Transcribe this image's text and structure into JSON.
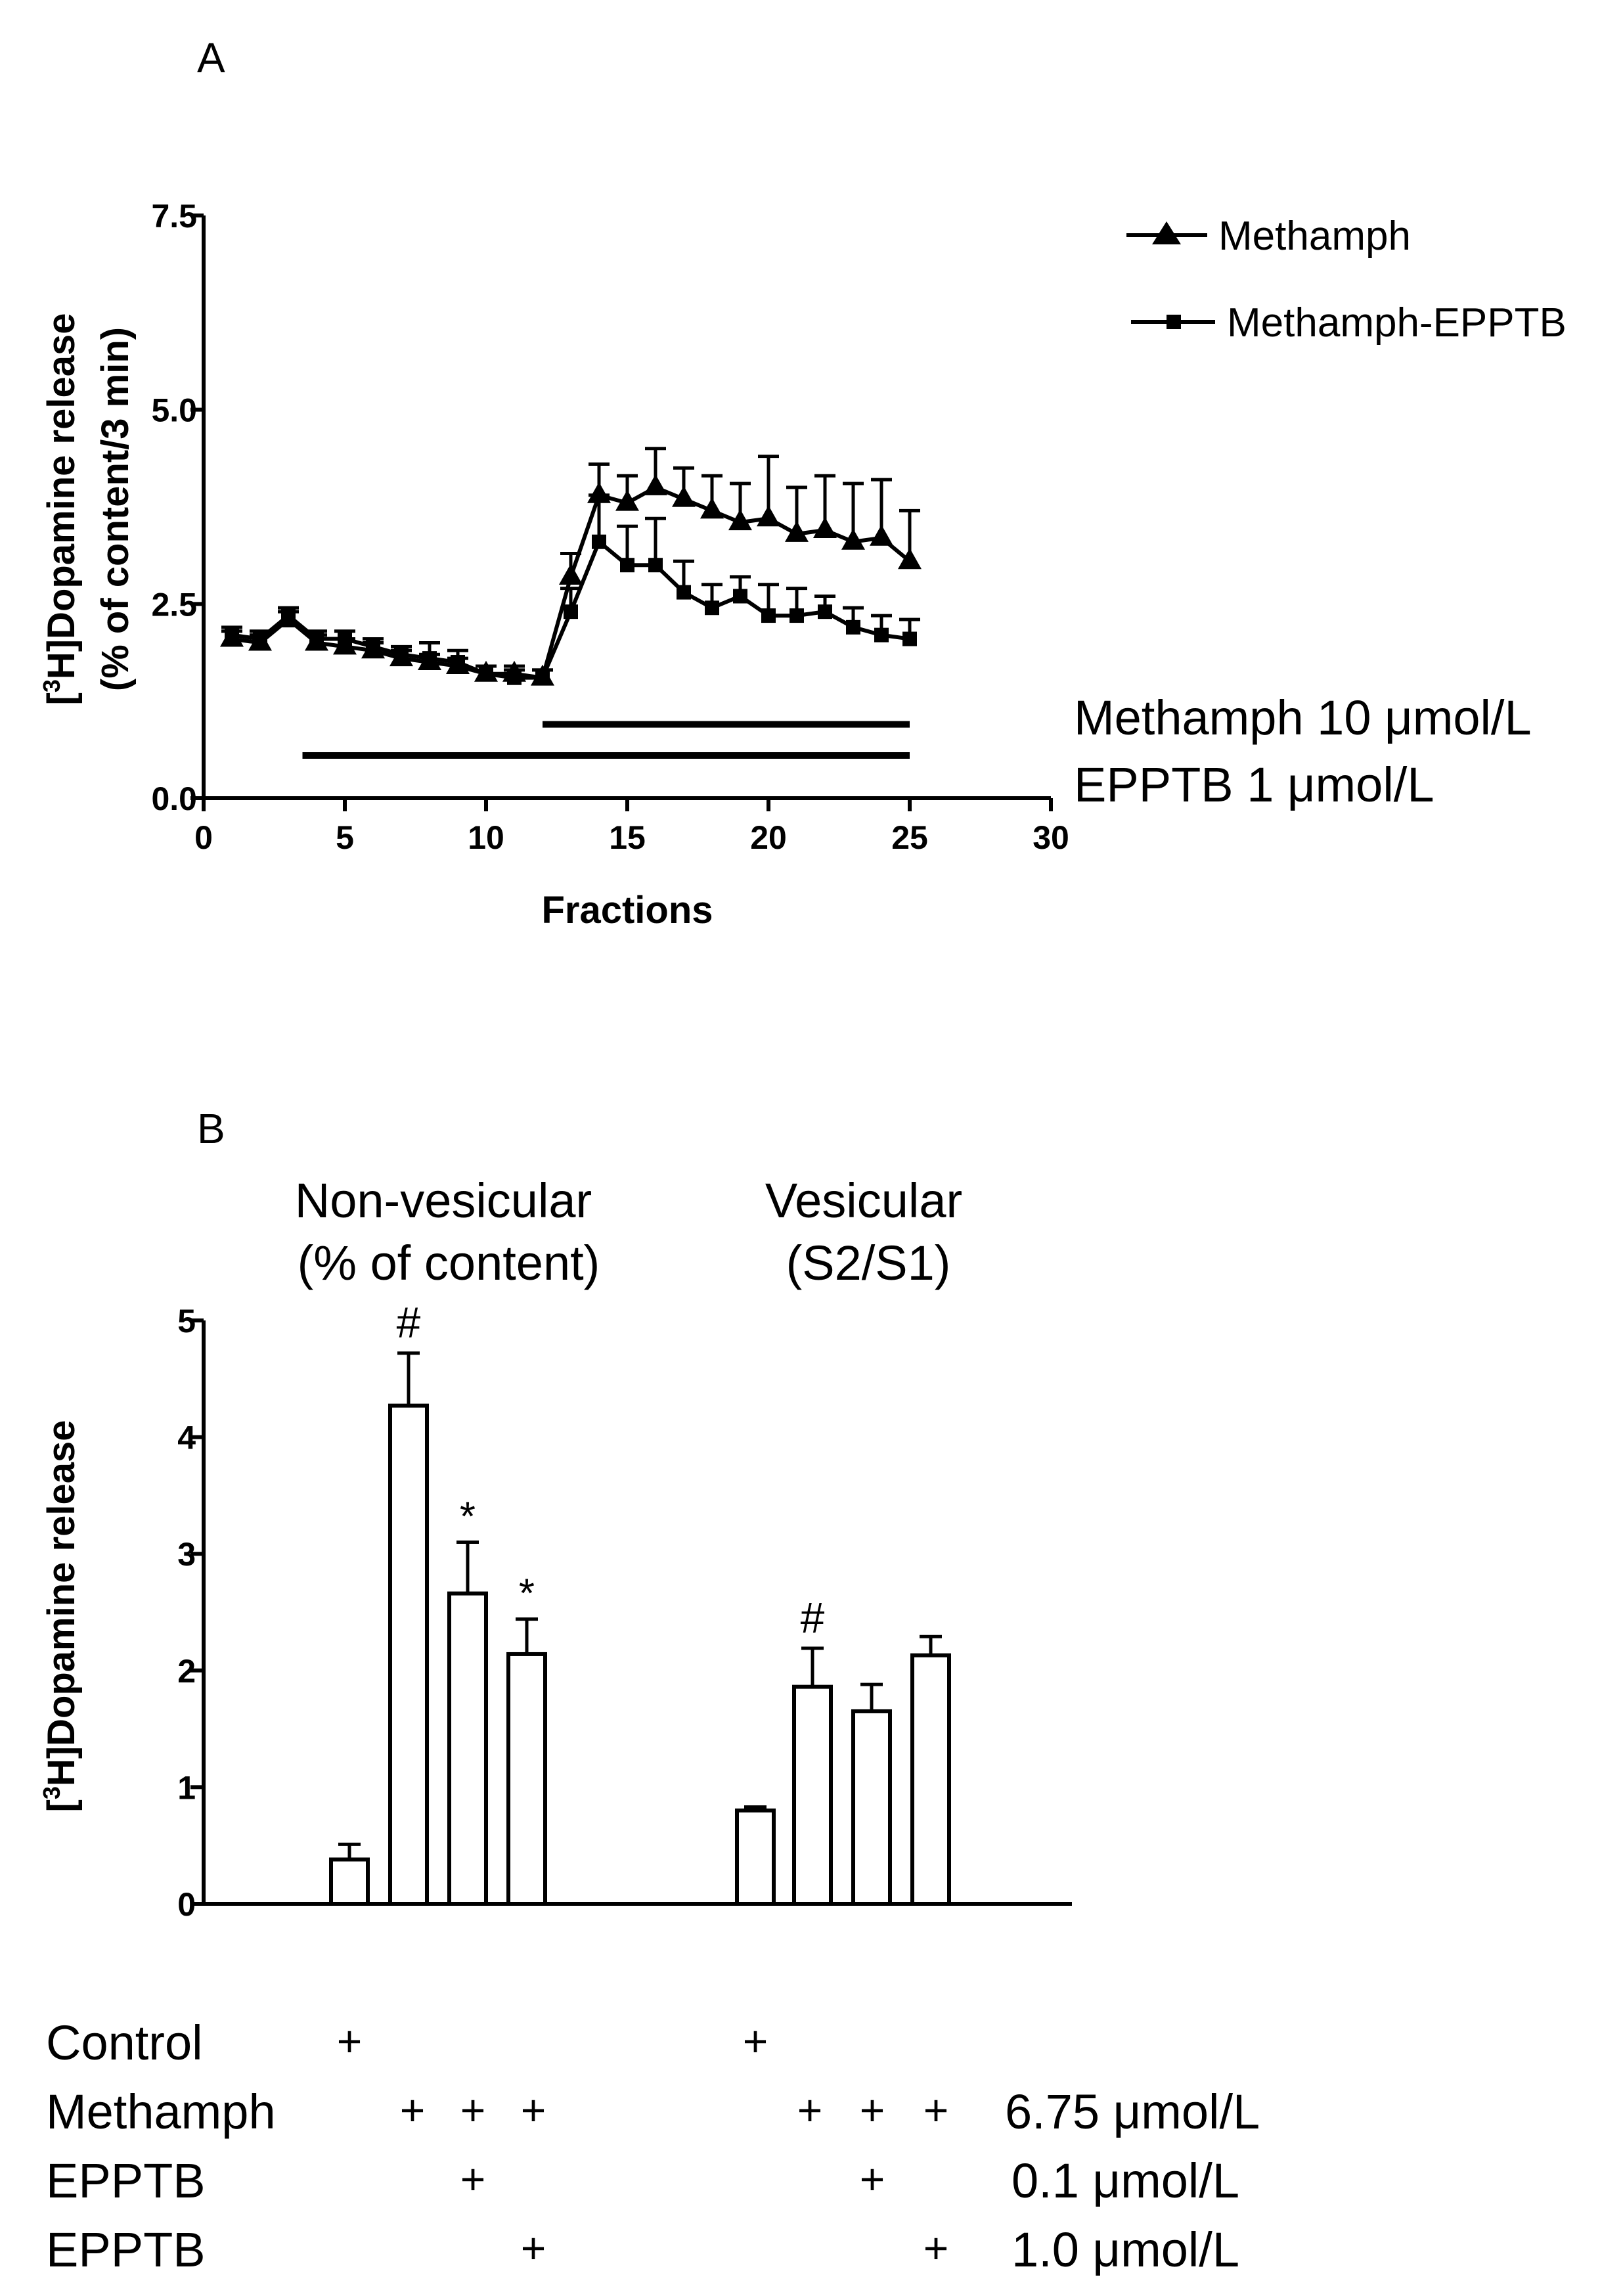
{
  "chart_data": [
    {
      "panel": "A",
      "type": "line",
      "xlabel": "Fractions",
      "ylabel_line1": "[3H]Dopamine release",
      "ylabel_line2": "(% of content/3 min)",
      "xlim": [
        0,
        30
      ],
      "ylim": [
        0,
        7.5
      ],
      "xticks": [
        0,
        5,
        10,
        15,
        20,
        25,
        30
      ],
      "yticks": [
        0.0,
        2.5,
        5.0,
        7.5
      ],
      "xtick_labels": [
        "0",
        "5",
        "10",
        "15",
        "20",
        "25",
        "30"
      ],
      "ytick_labels": [
        "0.0",
        "2.5",
        "5.0",
        "7.5"
      ],
      "series": [
        {
          "name": "Methamph",
          "marker": "triangle",
          "x": [
            1,
            2,
            3,
            4,
            5,
            6,
            7,
            8,
            9,
            10,
            11,
            12,
            13,
            14,
            15,
            16,
            17,
            18,
            19,
            20,
            21,
            22,
            23,
            24,
            25
          ],
          "y": [
            2.05,
            2.0,
            2.3,
            2.0,
            1.95,
            1.9,
            1.8,
            1.75,
            1.7,
            1.6,
            1.6,
            1.55,
            2.85,
            3.9,
            3.8,
            4.0,
            3.85,
            3.7,
            3.55,
            3.6,
            3.4,
            3.45,
            3.3,
            3.35,
            3.05
          ],
          "err": [
            0.1,
            0.1,
            0.1,
            0.1,
            0.1,
            0.1,
            0.1,
            0.1,
            0.1,
            0.1,
            0.1,
            0.1,
            0.3,
            0.4,
            0.35,
            0.5,
            0.4,
            0.45,
            0.5,
            0.8,
            0.6,
            0.7,
            0.75,
            0.75,
            0.65
          ]
        },
        {
          "name": "Methamph-EPPTB",
          "marker": "square",
          "x": [
            1,
            2,
            3,
            4,
            5,
            6,
            7,
            8,
            9,
            10,
            11,
            12,
            13,
            14,
            15,
            16,
            17,
            18,
            19,
            20,
            21,
            22,
            23,
            24,
            25
          ],
          "y": [
            2.1,
            2.05,
            2.35,
            2.05,
            2.05,
            1.95,
            1.85,
            1.8,
            1.75,
            1.6,
            1.55,
            1.55,
            2.4,
            3.3,
            3.0,
            3.0,
            2.65,
            2.45,
            2.6,
            2.35,
            2.35,
            2.4,
            2.2,
            2.1,
            2.05
          ],
          "err": [
            0.1,
            0.1,
            0.1,
            0.1,
            0.1,
            0.1,
            0.1,
            0.2,
            0.15,
            0.1,
            0.1,
            0.1,
            0.3,
            0.6,
            0.5,
            0.6,
            0.4,
            0.3,
            0.25,
            0.4,
            0.35,
            0.2,
            0.25,
            0.25,
            0.25
          ]
        }
      ],
      "treatment_bars": [
        {
          "label": "Methamph 10 μmol/L",
          "start": 12,
          "end": 25,
          "y": 0.95
        },
        {
          "label": "EPPTB 1 μmol/L",
          "start": 3.5,
          "end": 25,
          "y": 0.55
        }
      ]
    },
    {
      "panel": "B",
      "type": "bar",
      "ylabel": "[3H]Dopamine release",
      "ylim": [
        0,
        5
      ],
      "yticks": [
        0,
        1,
        2,
        3,
        4,
        5
      ],
      "ytick_labels": [
        "0",
        "1",
        "2",
        "3",
        "4",
        "5"
      ],
      "groups": [
        {
          "label_line1": "Non-vesicular",
          "label_line2": "(% of content)"
        },
        {
          "label_line1": "Vesicular",
          "label_line2": "(S2/S1)"
        }
      ],
      "bars": [
        {
          "value": 0.38,
          "err": 0.13,
          "annotation": ""
        },
        {
          "value": 4.27,
          "err": 0.45,
          "annotation": "#"
        },
        {
          "value": 2.66,
          "err": 0.44,
          "annotation": "*"
        },
        {
          "value": 2.14,
          "err": 0.3,
          "annotation": "*"
        },
        {
          "value": 0.8,
          "err": 0.03,
          "annotation": ""
        },
        {
          "value": 1.86,
          "err": 0.33,
          "annotation": "#"
        },
        {
          "value": 1.65,
          "err": 0.23,
          "annotation": ""
        },
        {
          "value": 2.13,
          "err": 0.16,
          "annotation": ""
        }
      ],
      "treatment_table": {
        "rows": [
          {
            "label": "Control",
            "unit": "",
            "plus": [
              true,
              false,
              false,
              false,
              true,
              false,
              false,
              false
            ]
          },
          {
            "label": "Methamph",
            "unit": "6.75 μmol/L",
            "plus": [
              false,
              true,
              true,
              true,
              false,
              true,
              true,
              true
            ]
          },
          {
            "label": "EPPTB",
            "unit": "0.1  μmol/L",
            "plus": [
              false,
              false,
              true,
              false,
              false,
              false,
              true,
              false
            ]
          },
          {
            "label": "EPPTB",
            "unit": "1.0  μmol/L",
            "plus": [
              false,
              false,
              false,
              true,
              false,
              false,
              false,
              true
            ]
          }
        ],
        "plus_symbol": "+"
      }
    }
  ],
  "panel_labels": {
    "a": "A",
    "b": "B"
  },
  "colors": {
    "ink": "#000000",
    "bar_fill": "#ffffff",
    "background": "#ffffff"
  }
}
